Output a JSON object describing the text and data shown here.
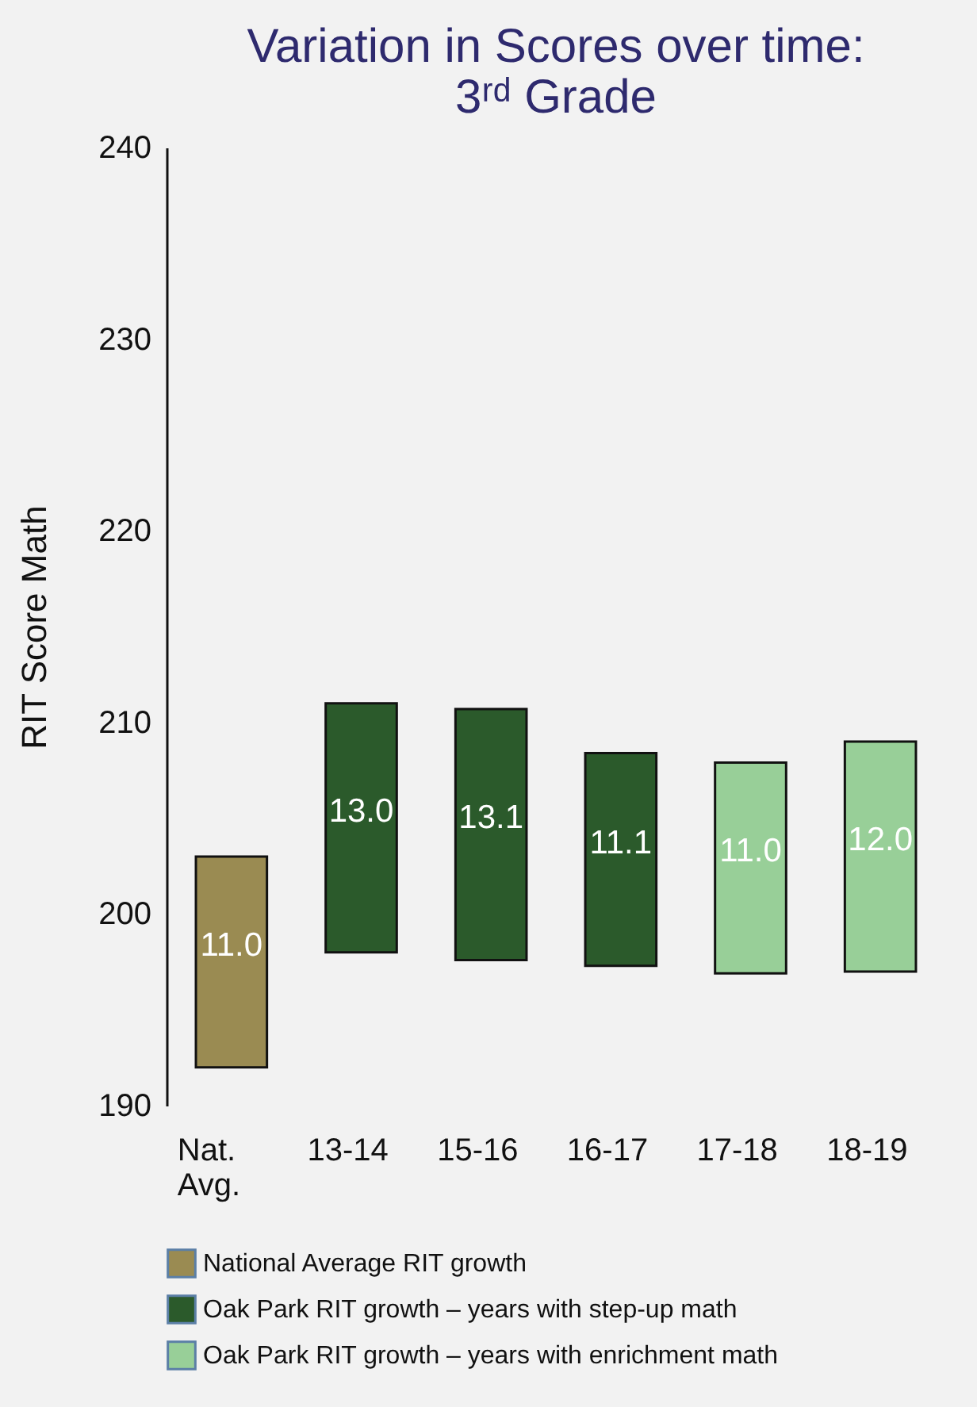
{
  "chart_data": {
    "type": "bar",
    "title": "Variation in Scores over time: 3ʳᵈ Grade",
    "ylabel": "RIT Score Math",
    "categories": [
      "Nat. Avg.",
      "13-14",
      "15-16",
      "16-17",
      "17-18",
      "18-19"
    ],
    "series": [
      {
        "name": "National Average RIT growth",
        "color": "#9a8b52",
        "values": [
          11.0,
          null,
          null,
          null,
          null,
          null
        ],
        "base": [
          192,
          null,
          null,
          null,
          null,
          null
        ],
        "value_labels": [
          "11.0",
          null,
          null,
          null,
          null,
          null
        ]
      },
      {
        "name": "Oak Park RIT growth – years with step-up math",
        "color": "#2b5a2b",
        "values": [
          null,
          13.0,
          13.1,
          11.1,
          null,
          null
        ],
        "base": [
          null,
          198,
          197.6,
          197.3,
          null,
          null
        ],
        "value_labels": [
          null,
          "13.0",
          "13.1",
          "11.1",
          null,
          null
        ]
      },
      {
        "name": "Oak Park RIT growth – years with enrichment math",
        "color": "#98cf98",
        "values": [
          null,
          null,
          null,
          null,
          11.0,
          12.0
        ],
        "base": [
          null,
          null,
          null,
          null,
          196.9,
          197
        ],
        "value_labels": [
          null,
          null,
          null,
          null,
          "11.0",
          "12.0"
        ]
      }
    ],
    "ylim": [
      190,
      240
    ],
    "yticks": [
      190,
      200,
      210,
      220,
      230,
      240
    ],
    "grid": false,
    "legend": "bottom left"
  }
}
